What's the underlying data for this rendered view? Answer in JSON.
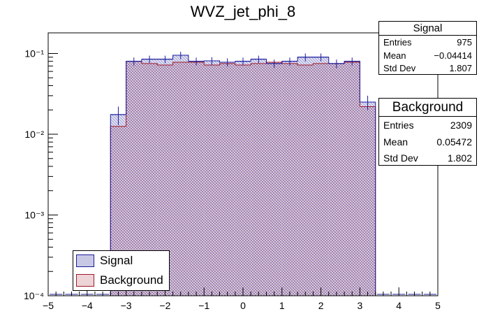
{
  "chart_data": {
    "type": "bar",
    "title": "WVZ_jet_phi_8",
    "xlabel": "",
    "ylabel": "",
    "xlim": [
      -5,
      5
    ],
    "ylim": [
      0.0001,
      0.18
    ],
    "y_scale": "log",
    "x_ticks": [
      "−5",
      "−4",
      "−3",
      "−2",
      "−1",
      "0",
      "1",
      "2",
      "3",
      "4",
      "5"
    ],
    "y_ticks": [
      {
        "value": 0.0001,
        "label": "10⁻⁴"
      },
      {
        "value": 0.001,
        "label": "10⁻³"
      },
      {
        "value": 0.01,
        "label": "10⁻²"
      },
      {
        "value": 0.1,
        "label": "10⁻¹"
      }
    ],
    "bin_edges": [
      -5.0,
      -4.6,
      -4.2,
      -3.8,
      -3.4,
      -3.0,
      -2.6,
      -2.2,
      -1.8,
      -1.4,
      -1.0,
      -0.6,
      -0.2,
      0.2,
      0.6,
      1.0,
      1.4,
      1.8,
      2.2,
      2.6,
      3.0,
      3.4,
      3.8,
      4.2,
      4.6,
      5.0
    ],
    "series": [
      {
        "name": "Signal",
        "color": "#1a1a9c",
        "fill": "#b4b4d8",
        "values": [
          0,
          0,
          0,
          0,
          0.0175,
          0.08,
          0.085,
          0.085,
          0.095,
          0.08,
          0.081,
          0.078,
          0.08,
          0.085,
          0.075,
          0.08,
          0.09,
          0.09,
          0.075,
          0.08,
          0.025,
          0,
          0,
          0,
          0
        ],
        "errors": [
          0,
          0,
          0,
          0,
          0.0045,
          0.009,
          0.009,
          0.009,
          0.01,
          0.009,
          0.009,
          0.009,
          0.009,
          0.009,
          0.009,
          0.009,
          0.01,
          0.01,
          0.009,
          0.009,
          0.005,
          0,
          0,
          0,
          0
        ]
      },
      {
        "name": "Background",
        "color": "#a01a2a",
        "fill": "#e8c8cc",
        "values": [
          0,
          0,
          0,
          0,
          0.0125,
          0.08,
          0.075,
          0.072,
          0.078,
          0.078,
          0.072,
          0.075,
          0.072,
          0.075,
          0.078,
          0.075,
          0.072,
          0.075,
          0.075,
          0.078,
          0.022,
          0,
          0,
          0,
          0
        ]
      }
    ],
    "stats": [
      {
        "title": "Signal",
        "rows": [
          {
            "label": "Entries",
            "value": "975"
          },
          {
            "label": "Mean",
            "value": "−0.04414"
          },
          {
            "label": "Std Dev",
            "value": "1.807"
          }
        ]
      },
      {
        "title": "Background",
        "rows": [
          {
            "label": "Entries",
            "value": "2309"
          },
          {
            "label": "Mean",
            "value": "0.05472"
          },
          {
            "label": "Std Dev",
            "value": "1.802"
          }
        ]
      }
    ],
    "legend_position": "bottom-left",
    "grid": false
  }
}
